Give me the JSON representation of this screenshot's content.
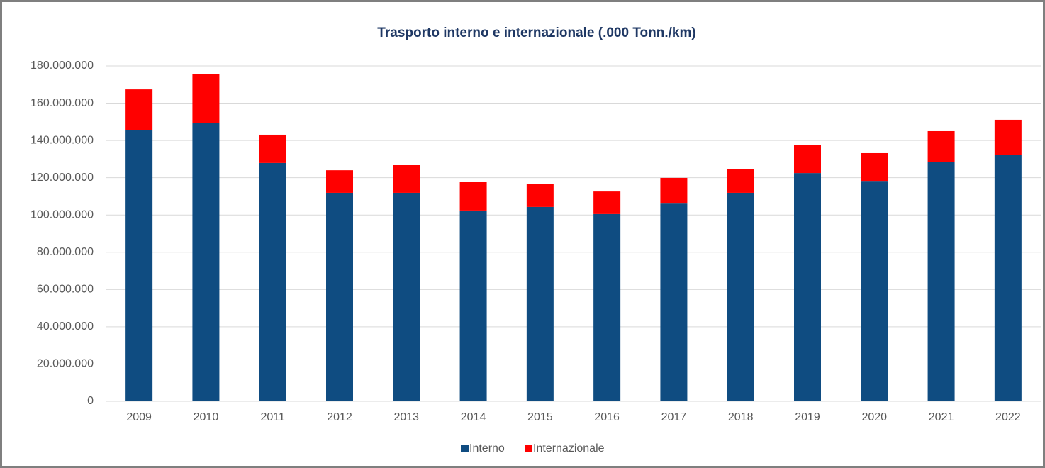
{
  "chart_data": {
    "type": "stacked_bar",
    "title": "Trasporto interno e internazionale (.000 Tonn./km)",
    "categories": [
      "2009",
      "2010",
      "2011",
      "2012",
      "2013",
      "2014",
      "2015",
      "2016",
      "2017",
      "2018",
      "2019",
      "2020",
      "2021",
      "2022"
    ],
    "series": [
      {
        "name": "Interno",
        "color": "#0f4c81",
        "values": [
          145700000,
          149200000,
          127900000,
          111900000,
          111900000,
          102400000,
          104300000,
          100500000,
          106500000,
          111900000,
          122500000,
          118300000,
          128600000,
          132400000
        ]
      },
      {
        "name": "Internazionale",
        "color": "#ff0000",
        "values": [
          21700000,
          26600000,
          15200000,
          12100000,
          15200000,
          15200000,
          12500000,
          12100000,
          13400000,
          12900000,
          15200000,
          14900000,
          16400000,
          18700000
        ]
      }
    ],
    "ylim": [
      0,
      180000000
    ],
    "yticks": [
      0,
      {
        "value": 20000000,
        "label": "20.000.000"
      },
      {
        "value": 40000000,
        "label": "40.000.000"
      },
      {
        "value": 60000000,
        "label": "60.000.000"
      },
      {
        "value": 80000000,
        "label": "80.000.000"
      },
      {
        "value": 100000000,
        "label": "100.000.000"
      },
      {
        "value": 120000000,
        "label": "120.000.000"
      },
      {
        "value": 140000000,
        "label": "140.000.000"
      },
      {
        "value": 160000000,
        "label": "160.000.000"
      },
      {
        "value": 180000000,
        "label": "180.000.000"
      }
    ],
    "grid": true,
    "legend": "bottom"
  }
}
